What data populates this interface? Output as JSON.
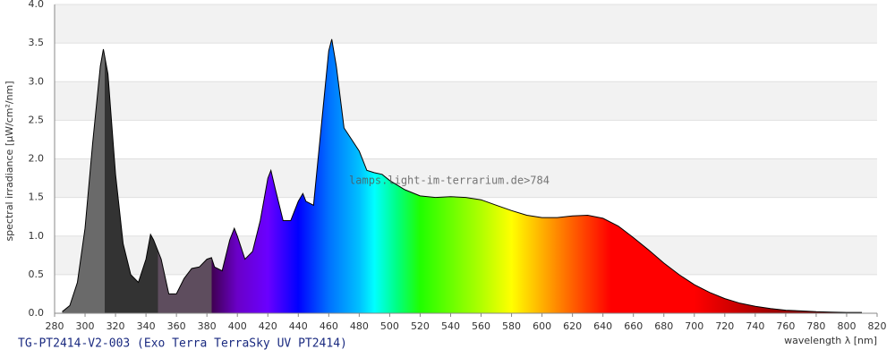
{
  "chart_data": {
    "type": "area",
    "subtitle": "TG-PT2414-V2-003 (Exo Terra TerraSky UV PT2414)",
    "xlabel": "wavelength λ [nm]",
    "ylabel": "spectral irradiance [µW/cm²/nm]",
    "annotation": "lamps.light-im-terrarium.de>784",
    "x": [
      285,
      290,
      295,
      300,
      305,
      310,
      312,
      315,
      320,
      325,
      330,
      335,
      340,
      343,
      345,
      350,
      355,
      360,
      365,
      370,
      375,
      380,
      383,
      385,
      390,
      395,
      398,
      400,
      405,
      410,
      415,
      420,
      422,
      425,
      430,
      435,
      440,
      443,
      445,
      450,
      455,
      460,
      462,
      465,
      470,
      475,
      480,
      485,
      490,
      495,
      500,
      510,
      520,
      530,
      540,
      550,
      560,
      570,
      580,
      590,
      600,
      610,
      620,
      630,
      640,
      650,
      660,
      670,
      680,
      690,
      700,
      710,
      720,
      730,
      740,
      750,
      760,
      770,
      780,
      790,
      800,
      810
    ],
    "series": [
      {
        "color": "#000000",
        "values": [
          0.02,
          0.1,
          0.4,
          1.1,
          2.2,
          3.2,
          3.42,
          3.1,
          1.8,
          0.9,
          0.5,
          0.4,
          0.7,
          1.02,
          0.95,
          0.7,
          0.25,
          0.25,
          0.45,
          0.58,
          0.6,
          0.7,
          0.72,
          0.6,
          0.55,
          0.95,
          1.1,
          1.0,
          0.7,
          0.8,
          1.2,
          1.75,
          1.85,
          1.6,
          1.2,
          1.2,
          1.45,
          1.55,
          1.45,
          1.4,
          2.4,
          3.4,
          3.55,
          3.2,
          2.4,
          2.25,
          2.1,
          1.85,
          1.82,
          1.8,
          1.72,
          1.6,
          1.52,
          1.5,
          1.51,
          1.5,
          1.47,
          1.4,
          1.33,
          1.27,
          1.24,
          1.24,
          1.26,
          1.27,
          1.23,
          1.13,
          0.98,
          0.82,
          0.65,
          0.5,
          0.37,
          0.27,
          0.19,
          0.13,
          0.09,
          0.06,
          0.04,
          0.03,
          0.02,
          0.015,
          0.01,
          0.01
        ]
      }
    ],
    "fill_colors": [
      {
        "x": 285,
        "color": "#6a6a6a"
      },
      {
        "x": 313,
        "color": "#6a6a6a"
      },
      {
        "x": 313,
        "color": "#333333"
      },
      {
        "x": 348,
        "color": "#333333"
      },
      {
        "x": 348,
        "color": "#5e4d5e"
      },
      {
        "x": 383,
        "color": "#5e4d5e"
      },
      {
        "x": 383,
        "color": "#3f0050"
      },
      {
        "x": 400,
        "color": "#6a00c8"
      },
      {
        "x": 420,
        "color": "#6a00ff"
      },
      {
        "x": 440,
        "color": "#0000ff"
      },
      {
        "x": 460,
        "color": "#0070ff"
      },
      {
        "x": 480,
        "color": "#00c0ff"
      },
      {
        "x": 490,
        "color": "#00ffff"
      },
      {
        "x": 505,
        "color": "#00ff80"
      },
      {
        "x": 520,
        "color": "#20ff00"
      },
      {
        "x": 560,
        "color": "#b0ff00"
      },
      {
        "x": 580,
        "color": "#ffff00"
      },
      {
        "x": 600,
        "color": "#ffb000"
      },
      {
        "x": 620,
        "color": "#ff6000"
      },
      {
        "x": 645,
        "color": "#ff0000"
      },
      {
        "x": 700,
        "color": "#ff0000"
      },
      {
        "x": 750,
        "color": "#a00000"
      },
      {
        "x": 810,
        "color": "#600000"
      }
    ],
    "xlim": [
      280,
      820
    ],
    "ylim": [
      0,
      4
    ],
    "xticks": [
      280,
      300,
      320,
      340,
      360,
      380,
      400,
      420,
      440,
      460,
      480,
      500,
      520,
      540,
      560,
      580,
      600,
      620,
      640,
      660,
      680,
      700,
      720,
      740,
      760,
      780,
      800,
      820
    ],
    "yticks": [
      {
        "value": 0,
        "label": "0.0"
      },
      0.5,
      {
        "value": 1,
        "label": "1.0"
      },
      1.5,
      {
        "value": 2,
        "label": "2.0"
      },
      2.5,
      {
        "value": 3,
        "label": "3.0"
      },
      3.5,
      {
        "value": 4,
        "label": "4.0"
      }
    ],
    "grid": true
  }
}
